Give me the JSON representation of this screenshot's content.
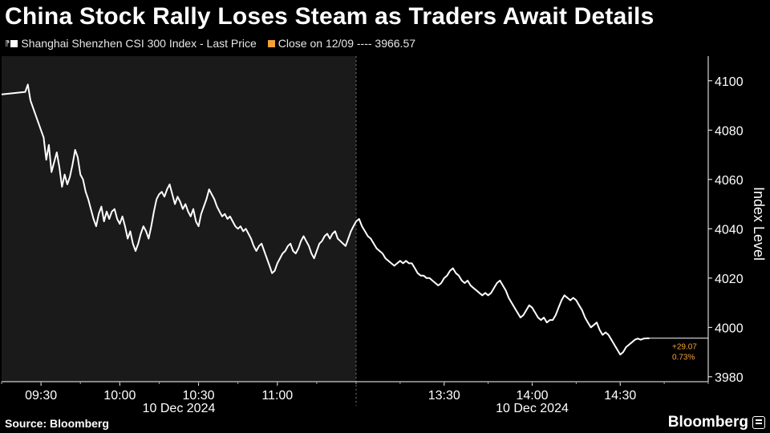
{
  "headline": "China Stock Rally Loses Steam as Traders Await Details",
  "legend": {
    "series_label": "Shanghai Shenzhen CSI 300 Index - Last Price",
    "reference_label": "Close on 12/09 ---- 3966.57"
  },
  "source": "Source: Bloomberg",
  "brand": "Bloomberg",
  "colors": {
    "background": "#000000",
    "morning_session_shade": "#1a1a1a",
    "line": "#ffffff",
    "reference_accent": "#f5a135"
  },
  "chart_data": {
    "type": "line",
    "title": "China Stock Rally Loses Steam as Traders Await Details",
    "ylabel": "Index Level",
    "ylim": [
      3978,
      4110
    ],
    "yticks": [
      3980,
      4000,
      4020,
      4040,
      4060,
      4080,
      4100
    ],
    "x_tick_labels": [
      "09:30",
      "10:00",
      "10:30",
      "11:00",
      "13:30",
      "14:00",
      "14:30"
    ],
    "date_labels": [
      "10 Dec 2024",
      "10 Dec 2024"
    ],
    "grid": false,
    "legend_position": "top-left",
    "series": [
      {
        "name": "Shanghai Shenzhen CSI 300 Index - Last Price",
        "morning_session": {
          "start": "09:15",
          "end": "11:30",
          "points": [
            [
              "09:15",
              4094.5
            ],
            [
              "09:24",
              4095.5
            ],
            [
              "09:25",
              4098.5
            ],
            [
              "09:26",
              4092
            ],
            [
              "09:30",
              4080
            ],
            [
              "09:31",
              4077
            ],
            [
              "09:32",
              4068
            ],
            [
              "09:33",
              4074
            ],
            [
              "09:34",
              4063
            ],
            [
              "09:35",
              4067
            ],
            [
              "09:36",
              4071
            ],
            [
              "09:37",
              4065
            ],
            [
              "09:38",
              4057
            ],
            [
              "09:39",
              4062
            ],
            [
              "09:40",
              4058
            ],
            [
              "09:41",
              4061
            ],
            [
              "09:42",
              4066
            ],
            [
              "09:43",
              4072
            ],
            [
              "09:44",
              4069
            ],
            [
              "09:45",
              4062
            ],
            [
              "09:46",
              4060
            ],
            [
              "09:47",
              4055
            ],
            [
              "09:48",
              4052
            ],
            [
              "09:49",
              4048
            ],
            [
              "09:50",
              4044
            ],
            [
              "09:51",
              4041
            ],
            [
              "09:52",
              4046
            ],
            [
              "09:53",
              4049
            ],
            [
              "09:54",
              4043
            ],
            [
              "09:55",
              4047
            ],
            [
              "09:56",
              4044
            ],
            [
              "09:57",
              4047
            ],
            [
              "09:58",
              4048
            ],
            [
              "09:59",
              4044
            ],
            [
              "10:00",
              4042
            ],
            [
              "10:01",
              4045
            ],
            [
              "10:02",
              4041
            ],
            [
              "10:03",
              4036
            ],
            [
              "10:04",
              4039
            ],
            [
              "10:05",
              4034
            ],
            [
              "10:06",
              4031
            ],
            [
              "10:07",
              4034
            ],
            [
              "10:08",
              4038
            ],
            [
              "10:09",
              4041
            ],
            [
              "10:10",
              4039
            ],
            [
              "10:11",
              4036
            ],
            [
              "10:12",
              4041
            ],
            [
              "10:13",
              4047
            ],
            [
              "10:14",
              4052
            ],
            [
              "10:15",
              4054
            ],
            [
              "10:16",
              4055
            ],
            [
              "10:17",
              4053
            ],
            [
              "10:18",
              4056
            ],
            [
              "10:19",
              4058
            ],
            [
              "10:20",
              4054
            ],
            [
              "10:21",
              4050
            ],
            [
              "10:22",
              4053
            ],
            [
              "10:23",
              4051
            ],
            [
              "10:24",
              4048
            ],
            [
              "10:25",
              4050
            ],
            [
              "10:26",
              4047
            ],
            [
              "10:27",
              4045
            ],
            [
              "10:28",
              4048
            ],
            [
              "10:29",
              4043
            ],
            [
              "10:30",
              4041
            ],
            [
              "10:31",
              4046
            ],
            [
              "10:32",
              4049
            ],
            [
              "10:33",
              4052
            ],
            [
              "10:34",
              4056
            ],
            [
              "10:35",
              4054
            ],
            [
              "10:36",
              4052
            ],
            [
              "10:37",
              4049
            ],
            [
              "10:38",
              4047
            ],
            [
              "10:39",
              4045
            ],
            [
              "10:40",
              4046
            ],
            [
              "10:41",
              4044
            ],
            [
              "10:42",
              4045
            ],
            [
              "10:43",
              4043
            ],
            [
              "10:44",
              4041
            ],
            [
              "10:45",
              4040
            ],
            [
              "10:46",
              4041
            ],
            [
              "10:47",
              4039
            ],
            [
              "10:48",
              4040
            ],
            [
              "10:49",
              4038
            ],
            [
              "10:50",
              4036
            ],
            [
              "10:51",
              4033
            ],
            [
              "10:52",
              4031
            ],
            [
              "10:53",
              4033
            ],
            [
              "10:54",
              4034
            ],
            [
              "10:55",
              4031
            ],
            [
              "10:56",
              4028
            ],
            [
              "10:57",
              4025
            ],
            [
              "10:58",
              4022
            ],
            [
              "10:59",
              4023
            ],
            [
              "11:00",
              4026
            ],
            [
              "11:01",
              4028
            ],
            [
              "11:02",
              4030
            ],
            [
              "11:03",
              4031
            ],
            [
              "11:04",
              4033
            ],
            [
              "11:05",
              4034
            ],
            [
              "11:06",
              4031
            ],
            [
              "11:07",
              4030
            ],
            [
              "11:08",
              4032
            ],
            [
              "11:09",
              4035
            ],
            [
              "11:10",
              4037
            ],
            [
              "11:11",
              4035
            ],
            [
              "11:12",
              4033
            ],
            [
              "11:13",
              4030
            ],
            [
              "11:14",
              4028
            ],
            [
              "11:15",
              4031
            ],
            [
              "11:16",
              4034
            ],
            [
              "11:17",
              4035
            ],
            [
              "11:18",
              4037
            ],
            [
              "11:19",
              4038
            ],
            [
              "11:20",
              4036
            ],
            [
              "11:21",
              4038
            ],
            [
              "11:22",
              4039
            ],
            [
              "11:23",
              4036
            ],
            [
              "11:24",
              4035
            ],
            [
              "11:25",
              4034
            ],
            [
              "11:26",
              4033
            ],
            [
              "11:27",
              4036
            ],
            [
              "11:28",
              4039
            ],
            [
              "11:29",
              4041
            ],
            [
              "11:30",
              4043
            ]
          ]
        },
        "afternoon_session": {
          "start": "13:00",
          "end": "15:00",
          "points": [
            [
              "13:00",
              4043
            ],
            [
              "13:01",
              4044
            ],
            [
              "13:02",
              4041
            ],
            [
              "13:03",
              4039
            ],
            [
              "13:04",
              4037
            ],
            [
              "13:05",
              4036
            ],
            [
              "13:06",
              4034
            ],
            [
              "13:07",
              4032
            ],
            [
              "13:08",
              4031
            ],
            [
              "13:09",
              4030
            ],
            [
              "13:10",
              4028
            ],
            [
              "13:11",
              4027
            ],
            [
              "13:12",
              4026
            ],
            [
              "13:13",
              4025
            ],
            [
              "13:14",
              4026
            ],
            [
              "13:15",
              4027
            ],
            [
              "13:16",
              4026
            ],
            [
              "13:17",
              4027
            ],
            [
              "13:18",
              4026
            ],
            [
              "13:19",
              4026
            ],
            [
              "13:20",
              4024
            ],
            [
              "13:21",
              4022
            ],
            [
              "13:22",
              4021
            ],
            [
              "13:23",
              4021
            ],
            [
              "13:24",
              4020
            ],
            [
              "13:25",
              4020
            ],
            [
              "13:26",
              4019
            ],
            [
              "13:27",
              4018
            ],
            [
              "13:28",
              4017
            ],
            [
              "13:29",
              4018
            ],
            [
              "13:30",
              4020
            ],
            [
              "13:31",
              4021
            ],
            [
              "13:32",
              4023
            ],
            [
              "13:33",
              4024
            ],
            [
              "13:34",
              4022
            ],
            [
              "13:35",
              4021
            ],
            [
              "13:36",
              4019
            ],
            [
              "13:37",
              4018
            ],
            [
              "13:38",
              4019
            ],
            [
              "13:39",
              4017
            ],
            [
              "13:40",
              4016
            ],
            [
              "13:41",
              4015
            ],
            [
              "13:42",
              4014
            ],
            [
              "13:43",
              4013
            ],
            [
              "13:44",
              4014
            ],
            [
              "13:45",
              4013
            ],
            [
              "13:46",
              4014
            ],
            [
              "13:47",
              4016
            ],
            [
              "13:48",
              4018
            ],
            [
              "13:49",
              4019
            ],
            [
              "13:50",
              4017
            ],
            [
              "13:51",
              4015
            ],
            [
              "13:52",
              4012
            ],
            [
              "13:53",
              4010
            ],
            [
              "13:54",
              4008
            ],
            [
              "13:55",
              4006
            ],
            [
              "13:56",
              4004
            ],
            [
              "13:57",
              4005
            ],
            [
              "13:58",
              4007
            ],
            [
              "13:59",
              4009
            ],
            [
              "14:00",
              4008
            ],
            [
              "14:01",
              4006
            ],
            [
              "14:02",
              4004
            ],
            [
              "14:03",
              4003
            ],
            [
              "14:04",
              4004
            ],
            [
              "14:05",
              4002
            ],
            [
              "14:06",
              4003
            ],
            [
              "14:07",
              4003
            ],
            [
              "14:08",
              4005
            ],
            [
              "14:09",
              4008
            ],
            [
              "14:10",
              4011
            ],
            [
              "14:11",
              4013
            ],
            [
              "14:12",
              4012
            ],
            [
              "14:13",
              4011
            ],
            [
              "14:14",
              4012
            ],
            [
              "14:15",
              4011
            ],
            [
              "14:16",
              4009
            ],
            [
              "14:17",
              4007
            ],
            [
              "14:18",
              4004
            ],
            [
              "14:19",
              4002
            ],
            [
              "14:20",
              4000
            ],
            [
              "14:21",
              4001
            ],
            [
              "14:22",
              4002
            ],
            [
              "14:23",
              3999
            ],
            [
              "14:24",
              3997
            ],
            [
              "14:25",
              3998
            ],
            [
              "14:26",
              3997
            ],
            [
              "14:27",
              3995
            ],
            [
              "14:28",
              3993
            ],
            [
              "14:29",
              3991
            ],
            [
              "14:30",
              3989
            ],
            [
              "14:31",
              3990
            ],
            [
              "14:32",
              3992
            ],
            [
              "14:33",
              3993
            ],
            [
              "14:34",
              3994
            ],
            [
              "14:35",
              3995
            ],
            [
              "14:36",
              3995.5
            ],
            [
              "14:37",
              3995
            ],
            [
              "14:38",
              3995.5
            ],
            [
              "14:39",
              3995.6
            ],
            [
              "14:40",
              3995.6
            ]
          ]
        }
      }
    ],
    "last_value_label": {
      "value": 3995.64,
      "change_text": "+29.07",
      "change_pct_text": "0.73%"
    }
  }
}
